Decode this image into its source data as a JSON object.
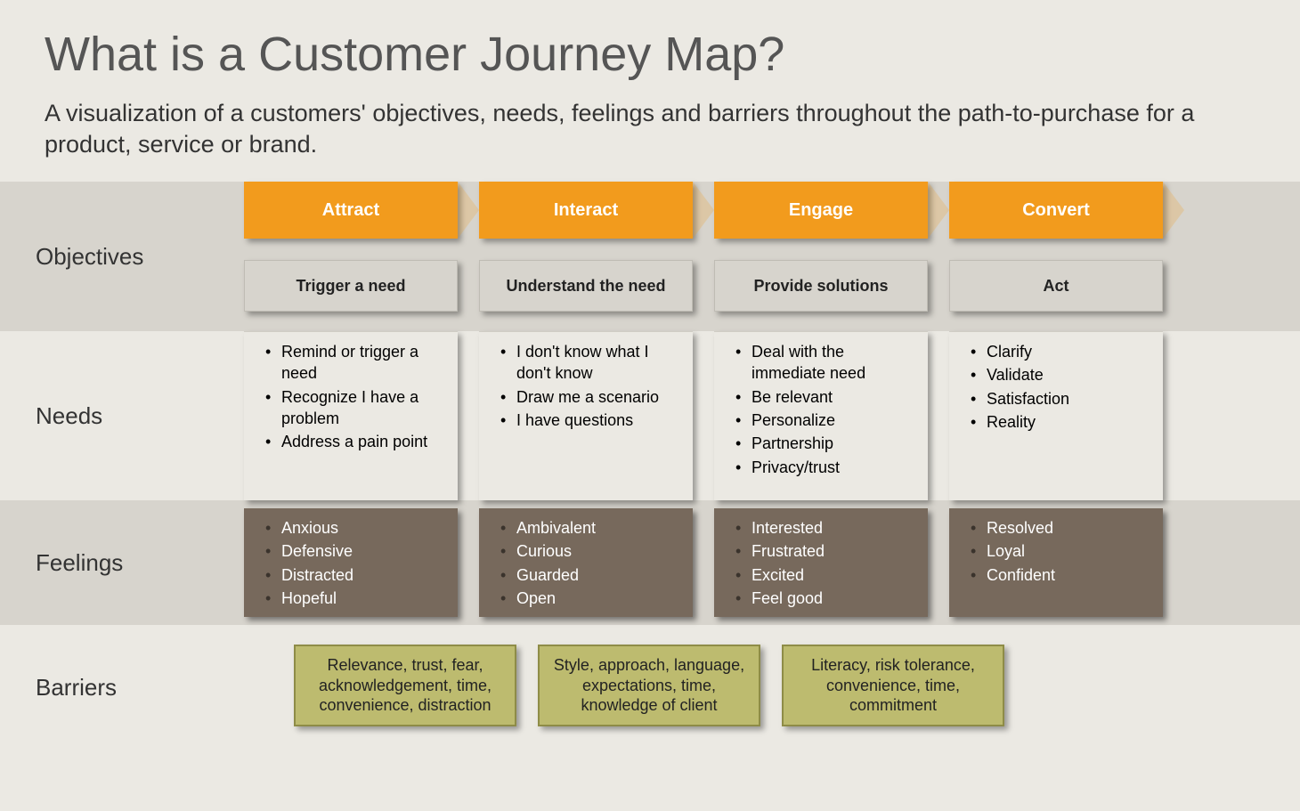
{
  "title": "What is a Customer Journey Map?",
  "subtitle": "A visualization of a customers' objectives, needs, feelings and barriers throughout the path-to-purchase for a product, service or brand.",
  "row_labels": {
    "objectives": "Objectives",
    "needs": "Needs",
    "feelings": "Feelings",
    "barriers": "Barriers"
  },
  "colors": {
    "background": "#ebe9e3",
    "row_band": "#d7d4cd",
    "header_bg": "#f29b1d",
    "header_text": "#ffffff",
    "feelings_bg": "#77695c",
    "feelings_text": "#ffffff",
    "barrier_bg": "#bdbb6f",
    "barrier_border": "#8e8c47",
    "title_color": "#555555",
    "text_color": "#333333"
  },
  "typography": {
    "title_fontsize": 54,
    "subtitle_fontsize": 27,
    "rowlabel_fontsize": 26,
    "header_fontsize": 20,
    "objective_fontsize": 18,
    "list_fontsize": 18,
    "barrier_fontsize": 18
  },
  "stages": [
    {
      "name": "Attract",
      "objective": "Trigger a need",
      "needs": [
        "Remind or trigger a need",
        "Recognize I have a problem",
        "Address a pain point"
      ],
      "feelings": [
        "Anxious",
        "Defensive",
        "Distracted",
        "Hopeful"
      ]
    },
    {
      "name": "Interact",
      "objective": "Understand the need",
      "needs": [
        "I don't know what I don't know",
        "Draw me a scenario",
        "I have questions"
      ],
      "feelings": [
        "Ambivalent",
        "Curious",
        "Guarded",
        "Open"
      ]
    },
    {
      "name": "Engage",
      "objective": "Provide solutions",
      "needs": [
        "Deal with the immediate need",
        "Be relevant",
        "Personalize",
        "Partnership",
        "Privacy/trust"
      ],
      "feelings": [
        "Interested",
        "Frustrated",
        "Excited",
        "Feel good"
      ]
    },
    {
      "name": "Convert",
      "objective": "Act",
      "needs": [
        "Clarify",
        "Validate",
        "Satisfaction",
        "Reality"
      ],
      "feelings": [
        "Resolved",
        "Loyal",
        "Confident"
      ]
    }
  ],
  "barriers": [
    "Relevance, trust, fear, acknowledgement, time, convenience, distraction",
    "Style, approach, language, expectations, time, knowledge of client",
    "Literacy, risk tolerance, convenience, time, commitment"
  ]
}
